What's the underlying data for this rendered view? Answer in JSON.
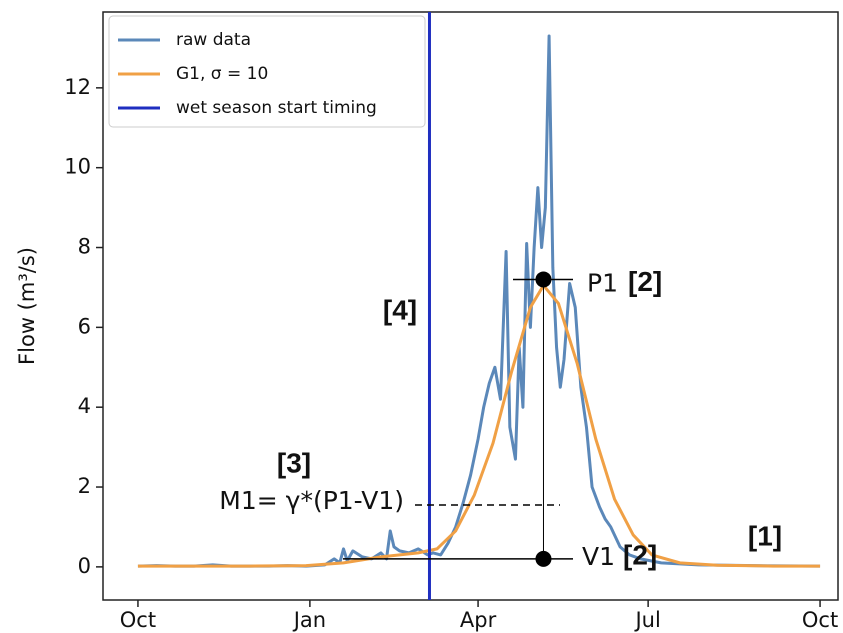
{
  "chart_data": {
    "type": "line",
    "y_label": "Flow (m³/s)",
    "xlim": [
      -18.7,
      374.6
    ],
    "ylim": [
      -0.83,
      13.9
    ],
    "xticks": [
      {
        "value": 0,
        "label": "Oct"
      },
      {
        "value": 92,
        "label": "Jan"
      },
      {
        "value": 182,
        "label": "Apr"
      },
      {
        "value": 273,
        "label": "Jul"
      },
      {
        "value": 365,
        "label": "Oct"
      }
    ],
    "yticks": [
      0,
      2,
      4,
      6,
      8,
      10,
      12
    ],
    "legend": "upper left",
    "series": [
      {
        "name": "raw data",
        "color": "#5b88b9",
        "x": [
          0,
          10,
          20,
          30,
          40,
          50,
          60,
          70,
          80,
          90,
          100,
          105,
          108,
          110,
          112,
          115,
          120,
          125,
          130,
          133,
          135,
          137,
          140,
          145,
          150,
          155,
          158,
          162,
          166,
          170,
          174,
          178,
          182,
          185,
          188,
          191,
          194,
          197,
          199,
          202,
          204,
          206,
          208,
          210,
          212,
          214,
          216,
          218,
          220,
          222,
          224,
          226,
          228,
          231,
          234,
          237,
          240,
          243,
          247,
          250,
          253,
          258,
          263,
          269,
          280,
          300,
          330,
          365
        ],
        "values": [
          0.02,
          0.03,
          0.02,
          0.02,
          0.05,
          0.02,
          0.02,
          0.02,
          0.03,
          0.02,
          0.05,
          0.2,
          0.1,
          0.45,
          0.15,
          0.4,
          0.25,
          0.2,
          0.35,
          0.2,
          0.9,
          0.5,
          0.4,
          0.35,
          0.45,
          0.3,
          0.35,
          0.3,
          0.6,
          1.0,
          1.6,
          2.3,
          3.2,
          4.0,
          4.6,
          5.0,
          4.2,
          7.9,
          3.5,
          2.7,
          5.5,
          4.0,
          8.1,
          6.0,
          8.0,
          9.5,
          8.0,
          9.0,
          13.3,
          7.5,
          5.5,
          4.5,
          5.2,
          7.1,
          6.5,
          4.5,
          3.5,
          2.0,
          1.5,
          1.2,
          1.0,
          0.5,
          0.3,
          0.2,
          0.1,
          0.05,
          0.03,
          0.02
        ]
      },
      {
        "name": "G1, σ = 10",
        "color": "#f0a045",
        "x": [
          0,
          30,
          60,
          90,
          110,
          130,
          150,
          160,
          170,
          180,
          190,
          200,
          210,
          217,
          225,
          235,
          245,
          255,
          265,
          275,
          290,
          310,
          340,
          365
        ],
        "values": [
          0.02,
          0.02,
          0.02,
          0.03,
          0.1,
          0.25,
          0.35,
          0.45,
          0.9,
          1.8,
          3.1,
          4.9,
          6.5,
          7.05,
          6.6,
          5.1,
          3.2,
          1.7,
          0.8,
          0.3,
          0.1,
          0.04,
          0.02,
          0.02
        ]
      }
    ],
    "vline": {
      "name": "wet season start timing",
      "color": "#1f2fc0",
      "x": 156
    },
    "annotations": {
      "peak": {
        "x": 217,
        "y": 7.2,
        "label": "P1",
        "tag": "[2]"
      },
      "valley": {
        "x": 217,
        "y": 0.2,
        "label": "V1",
        "tag": "[2]"
      },
      "m1": {
        "y": 1.55,
        "label": "M1= γ*(P1-V1)",
        "tag": "[3]"
      },
      "timing_tag": "[4]",
      "year_tag": "[1]"
    }
  }
}
